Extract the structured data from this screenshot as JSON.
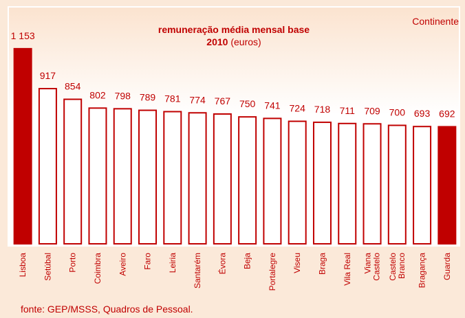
{
  "chart_data": {
    "type": "bar",
    "title": "remuneração média mensal base",
    "subtitle_bold": "2010",
    "subtitle_rest": "(euros)",
    "corner_label": "Continente",
    "source": "fonte: GEP/MSSS, Quadros de Pessoal.",
    "categories": [
      "Lisboa",
      "Setúbal",
      "Porto",
      "Coimbra",
      "Aveiro",
      "Faro",
      "Leiria",
      "Santarém",
      "Évora",
      "Beja",
      "Portalegre",
      "Viseu",
      "Braga",
      "Vila Real",
      "Viana\nCastelo",
      "Castelo\nBranco",
      "Bragança",
      "Guarda"
    ],
    "values": [
      1153,
      917,
      854,
      802,
      798,
      789,
      781,
      774,
      767,
      750,
      741,
      724,
      718,
      711,
      709,
      700,
      693,
      692
    ],
    "value_labels": [
      "1 153",
      "917",
      "854",
      "802",
      "798",
      "789",
      "781",
      "774",
      "767",
      "750",
      "741",
      "724",
      "718",
      "711",
      "709",
      "700",
      "693",
      "692"
    ],
    "colors": [
      "#c00000",
      "#ffffff",
      "#ffffff",
      "#ffffff",
      "#ffffff",
      "#ffffff",
      "#ffffff",
      "#ffffff",
      "#ffffff",
      "#ffffff",
      "#ffffff",
      "#ffffff",
      "#ffffff",
      "#ffffff",
      "#ffffff",
      "#ffffff",
      "#ffffff",
      "#c00000"
    ],
    "edge_color": "#c00000",
    "ylim": [
      0,
      1400
    ]
  }
}
